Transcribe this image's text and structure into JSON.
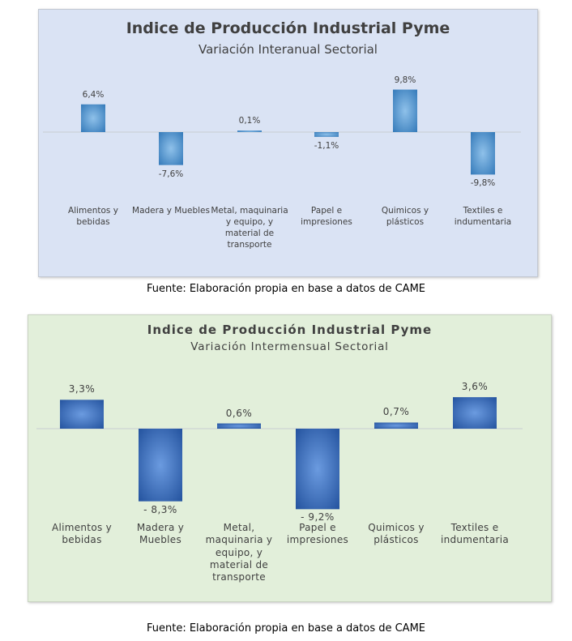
{
  "chart_data": [
    {
      "type": "bar",
      "title": "Indice de Producción Industrial Pyme",
      "subtitle": "Variación Interanual Sectorial",
      "categories": [
        "Alimentos y bebidas",
        "Madera y Muebles",
        "Metal, maquinaria y equipo, y material de transporte",
        "Papel e impresiones",
        "Quimicos y plásticos",
        "Textiles e indumentaria"
      ],
      "values": [
        6.4,
        -7.6,
        0.1,
        -1.1,
        9.8,
        -9.8
      ],
      "value_labels": [
        "6,4%",
        "-7,6%",
        "0,1%",
        "-1,1%",
        "9,8%",
        "-9,8%"
      ],
      "background": "#dae3f4",
      "bar_color": "#2e75b6",
      "caption": "Fuente: Elaboración propia en base a datos de CAME"
    },
    {
      "type": "bar",
      "title": "Indice de Producción Industrial Pyme",
      "subtitle": "Variación Intermensual Sectorial",
      "categories": [
        "Alimentos y bebidas",
        "Madera y Muebles",
        "Metal, maquinaria y equipo, y material de transporte",
        "Papel e impresiones",
        "Quimicos y plásticos",
        "Textiles e indumentaria"
      ],
      "values": [
        3.3,
        -8.3,
        0.6,
        -9.2,
        0.7,
        3.6
      ],
      "value_labels": [
        "3,3%",
        "- 8,3%",
        "0,6%",
        "- 9,2%",
        "0,7%",
        "3,6%"
      ],
      "background": "#e2efda",
      "bar_color": "#2f5597",
      "caption": "Fuente: Elaboración propia en base a datos de CAME"
    }
  ]
}
